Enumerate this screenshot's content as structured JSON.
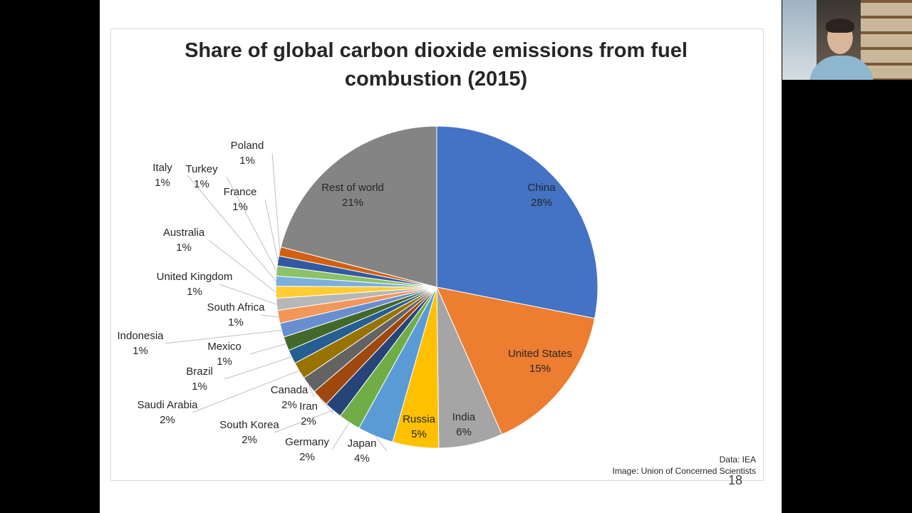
{
  "slide_number": "18",
  "chart_data": {
    "type": "pie",
    "title": "Share of global carbon dioxide emissions from fuel combustion (2015)",
    "title_lines": [
      "Share of global carbon dioxide emissions from fuel",
      "combustion (2015)"
    ],
    "start_angle_deg": 0,
    "direction": "clockwise",
    "slices": [
      {
        "label": "China",
        "pct": "28%",
        "value": 28.0,
        "color": "#4472C4"
      },
      {
        "label": "United States",
        "pct": "15%",
        "value": 15.2,
        "color": "#ED7D31"
      },
      {
        "label": "India",
        "pct": "6%",
        "value": 6.4,
        "color": "#A5A5A5"
      },
      {
        "label": "Russia",
        "pct": "5%",
        "value": 4.6,
        "color": "#FFC000"
      },
      {
        "label": "Japan",
        "pct": "4%",
        "value": 3.6,
        "color": "#5B9BD5"
      },
      {
        "label": "Germany",
        "pct": "2%",
        "value": 2.2,
        "color": "#70AD47"
      },
      {
        "label": "South Korea",
        "pct": "2%",
        "value": 1.8,
        "color": "#264478"
      },
      {
        "label": "Iran",
        "pct": "2%",
        "value": 1.7,
        "color": "#9E480E"
      },
      {
        "label": "Canada",
        "pct": "2%",
        "value": 1.7,
        "color": "#636363"
      },
      {
        "label": "Saudi Arabia",
        "pct": "2%",
        "value": 1.7,
        "color": "#997300"
      },
      {
        "label": "Brazil",
        "pct": "1%",
        "value": 1.4,
        "color": "#255E91"
      },
      {
        "label": "Mexico",
        "pct": "1%",
        "value": 1.4,
        "color": "#43682B"
      },
      {
        "label": "Indonesia",
        "pct": "1%",
        "value": 1.4,
        "color": "#698ED0"
      },
      {
        "label": "South Africa",
        "pct": "1%",
        "value": 1.3,
        "color": "#F1975A"
      },
      {
        "label": "United Kingdom",
        "pct": "1%",
        "value": 1.2,
        "color": "#B7B7B7"
      },
      {
        "label": "Australia",
        "pct": "1%",
        "value": 1.2,
        "color": "#FFCD33"
      },
      {
        "label": "Italy",
        "pct": "1%",
        "value": 1.0,
        "color": "#7CAFDD"
      },
      {
        "label": "Turkey",
        "pct": "1%",
        "value": 1.0,
        "color": "#8CC168"
      },
      {
        "label": "France",
        "pct": "1%",
        "value": 1.0,
        "color": "#335AA1"
      },
      {
        "label": "Poland",
        "pct": "1%",
        "value": 0.9,
        "color": "#D26012"
      },
      {
        "label": "Rest of world",
        "pct": "21%",
        "value": 20.9,
        "color": "#848484"
      }
    ],
    "source_lines": [
      "Data: IEA",
      "Image: Union of Concerned Scientists"
    ]
  }
}
